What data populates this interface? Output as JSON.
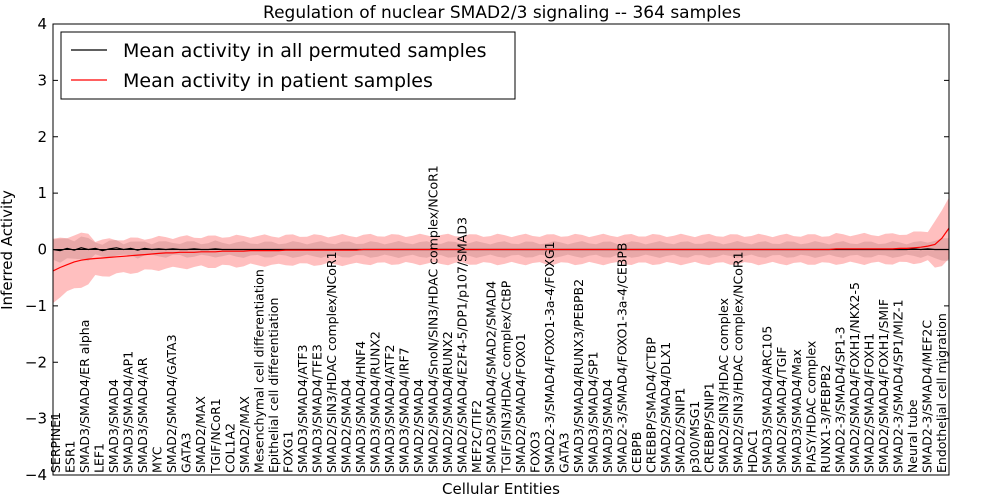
{
  "chart_data": {
    "type": "line",
    "title": "Regulation of nuclear SMAD2/3 signaling -- 364 samples",
    "xlabel": "Cellular Entities",
    "ylabel": "Inferred Activity",
    "ylim": [
      -4,
      4
    ],
    "yticks": [
      -4,
      -3,
      -2,
      -1,
      0,
      1,
      2,
      3,
      4
    ],
    "grid": false,
    "legend_position": "top-left",
    "series": [
      {
        "name": "Mean activity in all permuted samples",
        "color": "#000000",
        "values": [
          0.0,
          -0.02,
          0.02,
          -0.01,
          0.03,
          0.0,
          0.02,
          -0.02,
          0.01,
          0.03,
          0.0,
          0.02,
          -0.01,
          0.02,
          0.0,
          0.01,
          0.0,
          0.01,
          0.0,
          0.0,
          0.01,
          0.0,
          0.0,
          0.01,
          0.0,
          0.0,
          0.0,
          0.0,
          0.0,
          0.0,
          0.0,
          0.0,
          0.0,
          0.0,
          0.0,
          0.0,
          0.0,
          0.0,
          0.0,
          0.0,
          0.0,
          0.0,
          0.0,
          0.0,
          0.0,
          0.0,
          0.0,
          0.0,
          0.0,
          0.0,
          0.0,
          0.0,
          0.0,
          0.0,
          0.0,
          0.0,
          0.0,
          0.0,
          0.0,
          0.0,
          0.0,
          0.0,
          0.0,
          0.0,
          0.0,
          0.0,
          0.0,
          0.0,
          0.0,
          0.0,
          0.0,
          0.0,
          0.0,
          0.0,
          0.0,
          0.0,
          0.0,
          0.0,
          0.0,
          0.0,
          0.0,
          0.0,
          0.0,
          0.0,
          0.0,
          0.0,
          0.0,
          0.0,
          0.0,
          0.0,
          0.0,
          0.0,
          0.0,
          0.0,
          0.0,
          0.0,
          0.0,
          0.0,
          0.0,
          0.0,
          0.0,
          0.0,
          0.0,
          0.0,
          0.0,
          0.0,
          0.0,
          0.0,
          0.0,
          0.0,
          0.0,
          0.0,
          0.0,
          0.0,
          0.0,
          0.0,
          0.0,
          0.0,
          0.0,
          0.0,
          0.0,
          0.0,
          0.01,
          0.0,
          0.01,
          0.0,
          0.0,
          0.0
        ],
        "band": 0.12
      },
      {
        "name": "Mean activity in patient samples",
        "color": "#ff0000",
        "values": [
          -0.38,
          -0.32,
          -0.27,
          -0.22,
          -0.19,
          -0.17,
          -0.16,
          -0.15,
          -0.14,
          -0.13,
          -0.12,
          -0.11,
          -0.1,
          -0.09,
          -0.08,
          -0.07,
          -0.06,
          -0.06,
          -0.05,
          -0.05,
          -0.05,
          -0.04,
          -0.04,
          -0.04,
          -0.03,
          -0.03,
          -0.03,
          -0.03,
          -0.02,
          -0.02,
          -0.02,
          -0.02,
          -0.02,
          -0.01,
          -0.01,
          -0.01,
          -0.01,
          -0.01,
          -0.01,
          -0.01,
          -0.01,
          -0.01,
          -0.01,
          -0.01,
          0.0,
          0.0,
          0.0,
          0.0,
          0.0,
          0.0,
          0.0,
          0.0,
          0.0,
          0.0,
          0.0,
          0.0,
          0.0,
          0.0,
          0.0,
          0.0,
          0.0,
          0.0,
          0.0,
          0.0,
          0.0,
          0.0,
          0.0,
          0.0,
          0.0,
          0.0,
          0.0,
          0.0,
          0.0,
          0.0,
          0.0,
          0.0,
          0.0,
          0.0,
          0.0,
          0.0,
          0.0,
          0.0,
          0.0,
          0.0,
          0.0,
          0.0,
          0.0,
          0.0,
          0.0,
          0.0,
          0.0,
          0.0,
          0.0,
          0.0,
          0.0,
          0.0,
          0.0,
          0.0,
          0.0,
          0.0,
          0.0,
          0.0,
          0.0,
          0.0,
          0.0,
          0.0,
          0.0,
          0.0,
          0.0,
          0.0,
          0.0,
          0.01,
          0.01,
          0.01,
          0.01,
          0.01,
          0.01,
          0.01,
          0.01,
          0.01,
          0.02,
          0.02,
          0.03,
          0.04,
          0.06,
          0.09,
          0.2,
          0.38
        ],
        "band": 0.25
      }
    ],
    "entities": [
      "SERPINE1",
      "ESR1",
      "SMAD3/SMAD4/ER alpha",
      "LEF1",
      "SMAD3/SMAD4",
      "SMAD3/SMAD4/AP1",
      "SMAD3/SMAD4/AR",
      "MYC",
      "SMAD2/SMAD4/GATA3",
      "GATA3",
      "SMAD2/MAX",
      "TGIF/NCoR1",
      "COL1A2",
      "SMAD2/MAX",
      "Mesenchymal cell differentiation",
      "Epithelial cell differentiation",
      "FOXG1",
      "SMAD3/SMAD4/ATF3",
      "SMAD3/SMAD4/TFE3",
      "SMAD2/SIN3/HDAC complex/NCoR1",
      "SMAD2/SMAD4",
      "SMAD3/SMAD4/HNF4",
      "SMAD3/SMAD4/RUNX2",
      "SMAD3/SMAD4/ATF2",
      "SMAD3/SMAD4/IRF7",
      "SMAD2/SMAD4",
      "SMAD2/SMAD4/SnoN/SIN3/HDAC complex/NCoR1",
      "SMAD2/SMAD4/RUNX2",
      "SMAD2/SMAD4/E2F4-5/DP1/p107/SMAD3",
      "MEF2C/TIF2",
      "SMAD3/SMAD4/SMAD2/SMAD4",
      "TGIF/SIN3/HDAC complex/CtBP",
      "SMAD2/SMAD4/FOXO1",
      "FOXO3",
      "SMAD2-3/SMAD4/FOXO1-3a-4/FOXG1",
      "GATA3",
      "SMAD3/SMAD4/RUNX3/PEBPB2",
      "SMAD3/SMAD4/SP1",
      "SMAD3/SMAD4",
      "SMAD2-3/SMAD4/FOXO1-3a-4/CEBPB",
      "CEBPB",
      "CREBBP/SMAD4/CTBP",
      "SMAD2/SMAD4/DLX1",
      "SMAD2/SNIP1",
      "p300/MSG1",
      "CREBBP/SNIP1",
      "SMAD2/SIN3/HDAC complex",
      "SMAD2/SIN3/HDAC complex/NCoR1",
      "HDAC1",
      "SMAD3/SMAD4/ARC105",
      "SMAD2/SMAD4/TGIF",
      "SMAD3/SMAD4/Max",
      "PIASY/HDAC complex",
      "RUNX1-3/PEBPB2",
      "SMAD2-3/SMAD4/SP1-3",
      "SMAD2/SMAD4/FOXH1/NKX2-5",
      "SMAD2/SMAD4/FOXH1",
      "SMAD2/SMAD4/FOXH1/SMIF",
      "SMAD2-3/SMAD4/SP1/MIZ-1",
      "Neural tube",
      "SMAD2-3/SMAD4/MEF2C",
      "Endothelial cell migration"
    ]
  },
  "legend": {
    "permuted_label": "Mean activity in all permuted samples",
    "patient_label": "Mean activity in patient samples"
  }
}
